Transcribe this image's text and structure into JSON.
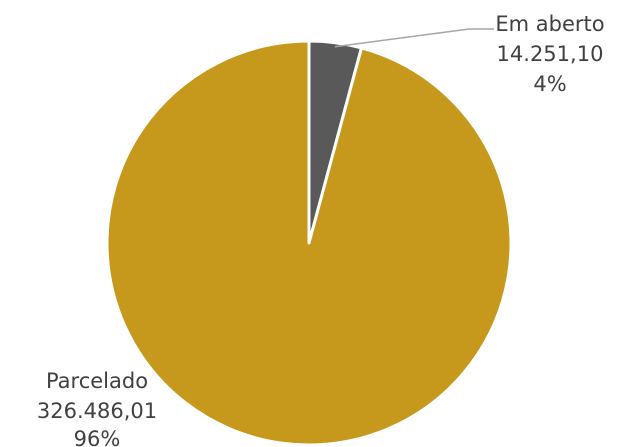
{
  "chart_data": {
    "type": "pie",
    "title": "",
    "start_angle_deg": 0,
    "direction": "clockwise",
    "slices": [
      {
        "label": "Em aberto",
        "value": 14251.1,
        "value_text": "14.251,10",
        "percent_text": "4%",
        "color": "#595959"
      },
      {
        "label": "Parcelado",
        "value": 326486.01,
        "value_text": "326.486,01",
        "percent_text": "96%",
        "color": "#C6981C"
      }
    ],
    "legend": "none",
    "slice_border_color": "#ffffff",
    "leader_line_color": "#a6a6a6"
  }
}
